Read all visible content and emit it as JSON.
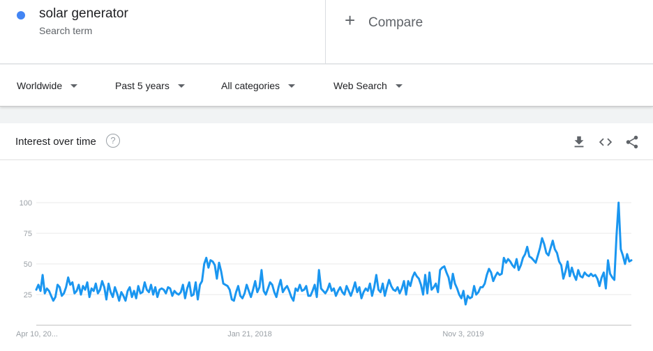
{
  "search_term": {
    "name": "solar generator",
    "type": "Search term",
    "color": "#4285f4"
  },
  "compare": {
    "label": "Compare"
  },
  "filters": {
    "region": "Worldwide",
    "time": "Past 5 years",
    "category": "All categories",
    "property": "Web Search"
  },
  "card": {
    "title": "Interest over time",
    "icons": [
      "help-icon",
      "download-icon",
      "embed-icon",
      "share-icon"
    ]
  },
  "chart_data": {
    "type": "line",
    "title": "",
    "xlabel": "",
    "ylabel": "",
    "ylim": [
      0,
      100
    ],
    "yticks": [
      25,
      50,
      75,
      100
    ],
    "xtick_labels": [
      "Apr 10, 20...",
      "Jan 21, 2018",
      "Nov 3, 2019"
    ],
    "grid": true,
    "series": [
      {
        "color": "#1a96f0",
        "values": [
          29,
          33,
          28,
          41,
          26,
          30,
          28,
          24,
          20,
          23,
          33,
          31,
          24,
          26,
          31,
          39,
          33,
          35,
          26,
          28,
          33,
          25,
          32,
          29,
          35,
          23,
          30,
          28,
          34,
          26,
          29,
          36,
          31,
          21,
          34,
          27,
          23,
          31,
          26,
          20,
          27,
          24,
          20,
          28,
          31,
          23,
          28,
          22,
          32,
          26,
          27,
          35,
          29,
          27,
          33,
          25,
          31,
          23,
          29,
          30,
          29,
          26,
          31,
          30,
          24,
          28,
          26,
          25,
          27,
          33,
          22,
          30,
          35,
          24,
          25,
          35,
          21,
          33,
          36,
          50,
          55,
          47,
          53,
          52,
          49,
          38,
          51,
          44,
          34,
          33,
          32,
          29,
          21,
          20,
          27,
          32,
          24,
          22,
          26,
          33,
          28,
          23,
          29,
          36,
          27,
          31,
          45,
          28,
          25,
          30,
          35,
          33,
          27,
          23,
          31,
          37,
          27,
          30,
          32,
          28,
          23,
          20,
          30,
          28,
          33,
          28,
          29,
          32,
          24,
          24,
          28,
          33,
          23,
          45,
          30,
          28,
          26,
          29,
          34,
          28,
          30,
          24,
          28,
          31,
          27,
          25,
          32,
          28,
          24,
          29,
          35,
          27,
          31,
          22,
          27,
          30,
          28,
          34,
          24,
          31,
          41,
          29,
          27,
          34,
          24,
          31,
          37,
          32,
          29,
          28,
          31,
          26,
          30,
          36,
          25,
          36,
          32,
          39,
          43,
          40,
          38,
          33,
          25,
          41,
          26,
          43,
          29,
          31,
          34,
          27,
          45,
          47,
          48,
          43,
          39,
          30,
          42,
          34,
          30,
          25,
          22,
          28,
          17,
          24,
          22,
          23,
          32,
          25,
          27,
          31,
          31,
          34,
          41,
          46,
          43,
          36,
          40,
          43,
          41,
          42,
          55,
          51,
          54,
          52,
          49,
          47,
          54,
          45,
          49,
          55,
          58,
          64,
          56,
          55,
          53,
          51,
          57,
          63,
          71,
          66,
          59,
          57,
          63,
          69,
          62,
          59,
          52,
          49,
          38,
          44,
          52,
          40,
          47,
          41,
          37,
          45,
          40,
          39,
          43,
          41,
          40,
          42,
          40,
          41,
          38,
          32,
          39,
          43,
          30,
          53,
          42,
          39,
          37,
          73,
          100,
          62,
          57,
          50,
          58,
          52,
          53
        ]
      }
    ]
  }
}
